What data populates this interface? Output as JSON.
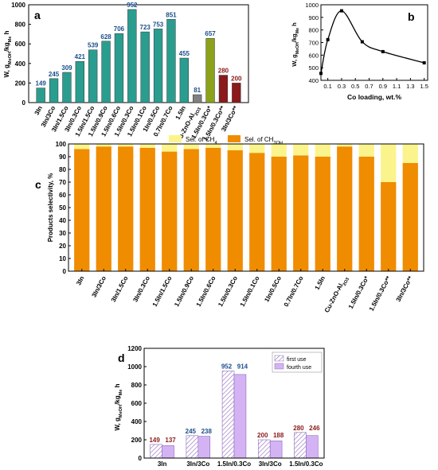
{
  "chart_data": [
    {
      "panel": "a",
      "type": "bar",
      "ylabel": "W, g_MeOH/kg_Me h",
      "ylim": [
        0,
        1000
      ],
      "yticks": [
        0,
        200,
        400,
        600,
        800,
        1000
      ],
      "categories": [
        "3In",
        "3In/3Co",
        "3In/1.5Co",
        "3In/0.3Co",
        "1.5In/1.5Co",
        "1.5In/0.9Co",
        "1.5In/0.6Co",
        "1.5In/0.3Co",
        "1.5In/0.1Co",
        "1In/0.5Co",
        "0.7In/0.7Co",
        "1.5In",
        "Cu-ZnO-Al2O3",
        "1.5In/0.3Co*",
        "1.5In/0.3Co**",
        "3In/3Co**"
      ],
      "values": [
        149,
        245,
        309,
        421,
        539,
        628,
        706,
        952,
        723,
        753,
        851,
        455,
        81,
        657,
        280,
        200
      ],
      "colors": [
        "#2a9d8f",
        "#2a9d8f",
        "#2a9d8f",
        "#2a9d8f",
        "#2a9d8f",
        "#2a9d8f",
        "#2a9d8f",
        "#2a9d8f",
        "#2a9d8f",
        "#2a9d8f",
        "#2a9d8f",
        "#2a9d8f",
        "#808080",
        "#8ca21b",
        "#8b1a1a",
        "#8b1a1a"
      ],
      "label_colors": [
        "#1a4f8a",
        "#1a4f8a",
        "#1a4f8a",
        "#1a4f8a",
        "#1a4f8a",
        "#1a4f8a",
        "#1a4f8a",
        "#1a4f8a",
        "#1a4f8a",
        "#1a4f8a",
        "#1a4f8a",
        "#1a4f8a",
        "#1a4f8a",
        "#1a4f8a",
        "#8b1a1a",
        "#8b1a1a"
      ]
    },
    {
      "panel": "b",
      "type": "line",
      "xlabel": "Co loading, wt.%",
      "ylabel": "W, g_MeOH/kg_Me h",
      "xlim": [
        0,
        1.55
      ],
      "ylim": [
        400,
        1000
      ],
      "xticks": [
        0.1,
        0.3,
        0.5,
        0.7,
        0.9,
        1.1,
        1.3,
        1.5
      ],
      "yticks": [
        400,
        500,
        600,
        700,
        800,
        900,
        1000
      ],
      "x": [
        0,
        0.1,
        0.3,
        0.6,
        0.9,
        1.5
      ],
      "y": [
        455,
        723,
        952,
        706,
        628,
        539
      ]
    },
    {
      "panel": "c",
      "type": "bar",
      "ylabel": "Products selectivity, %",
      "ylim": [
        0,
        100
      ],
      "yticks": [
        0,
        10,
        20,
        30,
        40,
        50,
        60,
        70,
        80,
        90,
        100
      ],
      "categories": [
        "3In",
        "3In/3Co",
        "3In/1.5Co",
        "3In/0.3Co",
        "1.5In/1.5Co",
        "1.5In/0.9Co",
        "1.5In/0.6Co",
        "1.5In/0.3Co",
        "1.5In/0.1Co",
        "1In/0.5Co",
        "0.7In/0.7Co",
        "1.5In",
        "Cu-ZnO-Al2O3",
        "1.5In/0.3Co*",
        "1.5In/0.3Co**",
        "3In/3Co**"
      ],
      "series": [
        {
          "name": "Sel. of CH3OH",
          "color": "#f08c00",
          "values": [
            96,
            98,
            98,
            97,
            94,
            96,
            97,
            95,
            93,
            90,
            91,
            90,
            98,
            90,
            70,
            85
          ]
        },
        {
          "name": "Sel. of CH4",
          "color": "#fbf48c",
          "values": [
            4,
            2,
            2,
            3,
            6,
            4,
            3,
            5,
            7,
            10,
            9,
            10,
            2,
            10,
            30,
            15
          ]
        }
      ],
      "legend": "top"
    },
    {
      "panel": "d",
      "type": "bar",
      "ylabel": "W, g_MeOH/kg_Me h",
      "ylim": [
        0,
        1200
      ],
      "yticks": [
        0,
        200,
        400,
        600,
        800,
        1000,
        1200
      ],
      "categories": [
        "3In",
        "3In/3Co",
        "1.5In/0.3Co",
        "3In/3Co",
        "1.5In/0.3Co"
      ],
      "series": [
        {
          "name": "first use",
          "values": [
            149,
            245,
            952,
            200,
            280
          ]
        },
        {
          "name": "fourth use",
          "values": [
            137,
            238,
            914,
            188,
            246
          ]
        }
      ],
      "label_colors": [
        "#8b1a1a",
        "#1a4f8a",
        "#1a4f8a",
        "#8b1a1a",
        "#8b1a1a"
      ],
      "legend": "top-right"
    }
  ]
}
